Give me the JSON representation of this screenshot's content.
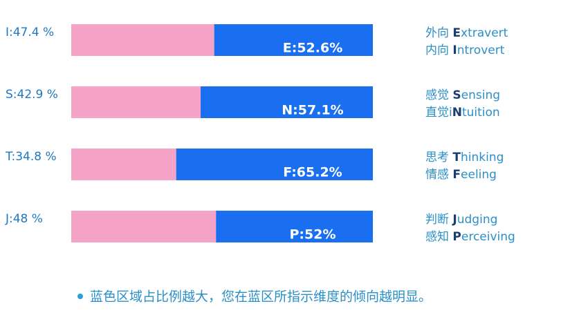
{
  "chart_data": {
    "type": "bar",
    "orientation": "horizontal",
    "stacked": true,
    "xlim": [
      0,
      100
    ],
    "series": [
      {
        "color": "#f5a3c7",
        "values": [
          47.4,
          42.9,
          34.8,
          48
        ],
        "value_labels": [
          "I:47.4 %",
          "S:42.9 %",
          "T:34.8 %",
          "J:48 %"
        ]
      },
      {
        "color": "#1a6ff0",
        "values": [
          52.6,
          57.1,
          65.2,
          52
        ],
        "value_labels": [
          "E:52.6%",
          "N:57.1%",
          "F:65.2%",
          "P:52%"
        ]
      }
    ],
    "dimension_labels": [
      [
        [
          {
            "text": "外向 "
          },
          {
            "text": "E",
            "bold": true
          },
          {
            "text": "xtravert"
          }
        ],
        [
          {
            "text": "内向 "
          },
          {
            "text": "I",
            "bold": true
          },
          {
            "text": "ntrovert"
          }
        ]
      ],
      [
        [
          {
            "text": "感觉 "
          },
          {
            "text": "S",
            "bold": true
          },
          {
            "text": "ensing"
          }
        ],
        [
          {
            "text": "直觉i"
          },
          {
            "text": "N",
            "bold": true
          },
          {
            "text": "tuition"
          }
        ]
      ],
      [
        [
          {
            "text": "思考 "
          },
          {
            "text": "T",
            "bold": true
          },
          {
            "text": "hinking"
          }
        ],
        [
          {
            "text": "情感 "
          },
          {
            "text": "F",
            "bold": true
          },
          {
            "text": "eeling"
          }
        ]
      ],
      [
        [
          {
            "text": "判断 "
          },
          {
            "text": "J",
            "bold": true
          },
          {
            "text": "udging"
          }
        ],
        [
          {
            "text": "感知 "
          },
          {
            "text": "P",
            "bold": true
          },
          {
            "text": "erceiving"
          }
        ]
      ]
    ],
    "note": "蓝色区域占比例越大，您在蓝区所指示维度的倾向越明显。"
  }
}
